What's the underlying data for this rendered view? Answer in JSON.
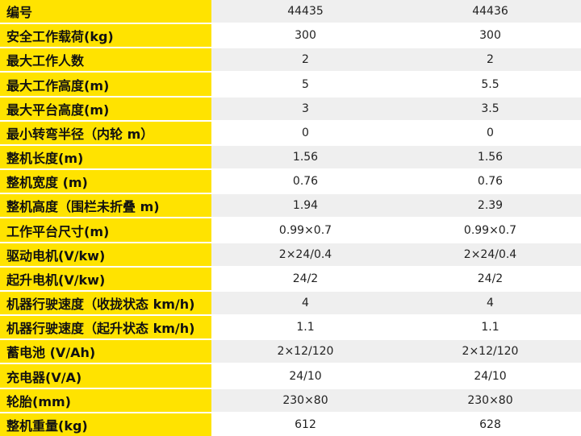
{
  "table": {
    "rows": [
      [
        "编号",
        "44435",
        "44436"
      ],
      [
        "安全工作载荷(kg)",
        "300",
        "300"
      ],
      [
        "最大工作人数",
        "2",
        "2"
      ],
      [
        "最大工作高度(m)",
        "5",
        "5.5"
      ],
      [
        "最大平台高度(m)",
        "3",
        "3.5"
      ],
      [
        "最小转弯半径（内轮 m）",
        "0",
        "0"
      ],
      [
        "整机长度(m)",
        "1.56",
        "1.56"
      ],
      [
        "整机宽度 (m)",
        "0.76",
        "0.76"
      ],
      [
        "整机高度（围栏未折叠 m)",
        "1.94",
        "2.39"
      ],
      [
        "工作平台尺寸(m)",
        "0.99×0.7",
        "0.99×0.7"
      ],
      [
        "驱动电机(V/kw)",
        "2×24/0.4",
        "2×24/0.4"
      ],
      [
        "起升电机(V/kw)",
        "24/2",
        "24/2"
      ],
      [
        "机器行驶速度（收拢状态 km/h)",
        "4",
        "4"
      ],
      [
        "机器行驶速度（起升状态 km/h)",
        "1.1",
        "1.1"
      ],
      [
        "蓄电池 (V/Ah)",
        "2×12/120",
        "2×12/120"
      ],
      [
        "充电器(V/A)",
        "24/10",
        "24/10"
      ],
      [
        "轮胎(mm)",
        "230×80",
        "230×80"
      ],
      [
        "整机重量(kg)",
        "612",
        "628"
      ]
    ]
  }
}
